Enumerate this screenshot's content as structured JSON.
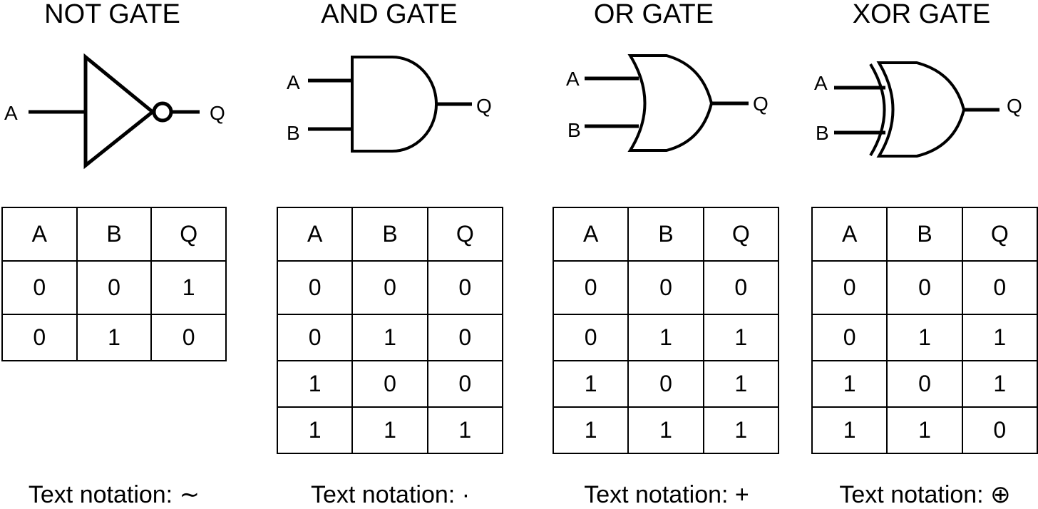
{
  "gates": [
    {
      "name": "NOT GATE",
      "inputs": [
        "A"
      ],
      "output": "Q",
      "headers": [
        "A",
        "B",
        "Q"
      ],
      "rows": [
        [
          "0",
          "0",
          "1"
        ],
        [
          "0",
          "1",
          "0"
        ]
      ],
      "notation_label": "Text notation:",
      "notation_symbol": "∼"
    },
    {
      "name": "AND GATE",
      "inputs": [
        "A",
        "B"
      ],
      "output": "Q",
      "headers": [
        "A",
        "B",
        "Q"
      ],
      "rows": [
        [
          "0",
          "0",
          "0"
        ],
        [
          "0",
          "1",
          "0"
        ],
        [
          "1",
          "0",
          "0"
        ],
        [
          "1",
          "1",
          "1"
        ]
      ],
      "notation_label": "Text notation:",
      "notation_symbol": "·"
    },
    {
      "name": "OR GATE",
      "inputs": [
        "A",
        "B"
      ],
      "output": "Q",
      "headers": [
        "A",
        "B",
        "Q"
      ],
      "rows": [
        [
          "0",
          "0",
          "0"
        ],
        [
          "0",
          "1",
          "1"
        ],
        [
          "1",
          "0",
          "1"
        ],
        [
          "1",
          "1",
          "1"
        ]
      ],
      "notation_label": "Text notation:",
      "notation_symbol": "+"
    },
    {
      "name": "XOR GATE",
      "inputs": [
        "A",
        "B"
      ],
      "output": "Q",
      "headers": [
        "A",
        "B",
        "Q"
      ],
      "rows": [
        [
          "0",
          "0",
          "0"
        ],
        [
          "0",
          "1",
          "1"
        ],
        [
          "1",
          "0",
          "1"
        ],
        [
          "1",
          "1",
          "0"
        ]
      ],
      "notation_label": "Text notation:",
      "notation_symbol": "⊕"
    }
  ]
}
